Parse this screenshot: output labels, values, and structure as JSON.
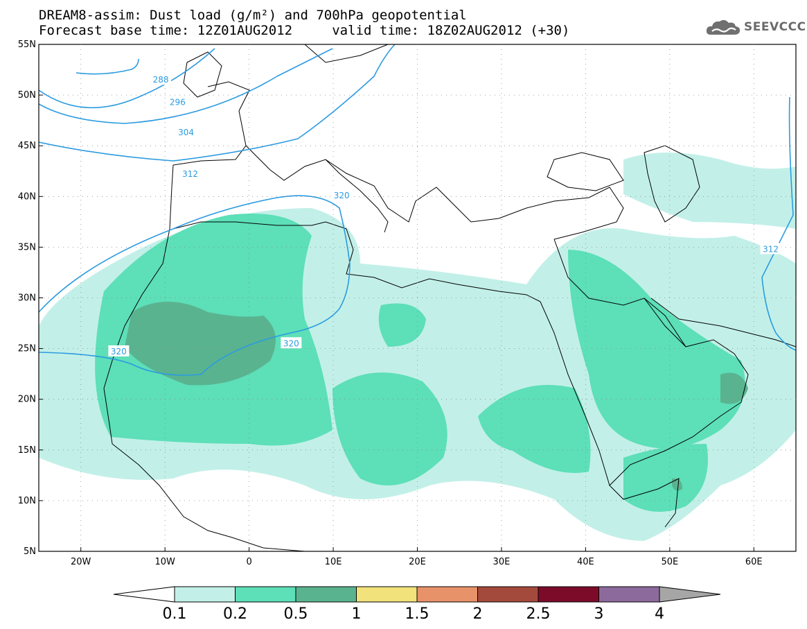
{
  "header": {
    "title_line1": "DREAM8-assim: Dust load (g/m²) and 700hPa geopotential",
    "title_line2": "Forecast base time: 12Z01AUG2012     valid time: 18Z02AUG2012 (+30)",
    "logo_text": "SEEVCCC",
    "logo_icon": "cloud-icon"
  },
  "map": {
    "lon_range": [
      -25,
      65
    ],
    "lat_range": [
      5,
      55
    ],
    "lat_labels": [
      "55N",
      "50N",
      "45N",
      "40N",
      "35N",
      "30N",
      "25N",
      "20N",
      "15N",
      "10N",
      "5N"
    ],
    "lat_values": [
      55,
      50,
      45,
      40,
      35,
      30,
      25,
      20,
      15,
      10,
      5
    ],
    "lon_labels": [
      "20W",
      "10W",
      "0",
      "10E",
      "20E",
      "30E",
      "40E",
      "50E",
      "60E"
    ],
    "lon_values": [
      -20,
      -10,
      0,
      10,
      20,
      30,
      40,
      50,
      60
    ],
    "contour_labels": [
      {
        "text": "288",
        "lon": -10.5,
        "lat": 51.5
      },
      {
        "text": "296",
        "lon": -8.5,
        "lat": 49.3
      },
      {
        "text": "304",
        "lon": -7.5,
        "lat": 46.3
      },
      {
        "text": "312",
        "lon": -7.0,
        "lat": 42.2
      },
      {
        "text": "320",
        "lon": 11.0,
        "lat": 40.1
      },
      {
        "text": "320",
        "lon": -15.5,
        "lat": 24.7
      },
      {
        "text": "320",
        "lon": 5.0,
        "lat": 25.5
      },
      {
        "text": "312",
        "lon": 62.0,
        "lat": 34.8
      }
    ],
    "colors": {
      "ocean": "#ffffff",
      "contour": "#2b9be0",
      "border": "#000000"
    }
  },
  "colorbar": {
    "labels": [
      "0.1",
      "0.2",
      "0.5",
      "1",
      "1.5",
      "2",
      "2.5",
      "3",
      "4"
    ],
    "colors": [
      "#c2f0e8",
      "#5ddfb8",
      "#5ab38f",
      "#f1e27b",
      "#e8926a",
      "#a44a3d",
      "#7c0b2a",
      "#8c6b9c"
    ],
    "under_color": "#ffffff",
    "over_color": "#a6a6a6"
  }
}
